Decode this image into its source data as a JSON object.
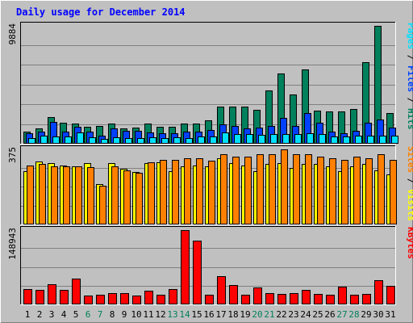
{
  "title": "Daily usage for December 2014",
  "colors": {
    "background": "#C0C0C0",
    "frame_outer": "#7F7F7F",
    "title_text": "#0000FF",
    "hits": "#00805C",
    "files": "#0040FF",
    "pages": "#00E0FF",
    "visits": "#FFFF00",
    "sites": "#FF8000",
    "kbytes": "#FF0000",
    "weekday": "#000000",
    "weekend": "#00805C"
  },
  "chart_data": [
    {
      "type": "bar",
      "panel": "top",
      "scale_label": "9884",
      "ylim": [
        0,
        9884
      ],
      "legend": [
        {
          "text": "Pages",
          "color": "#00E0FF"
        },
        {
          "text": " / ",
          "color": "#000000"
        },
        {
          "text": "Files",
          "color": "#0040FF"
        },
        {
          "text": " / ",
          "color": "#000000"
        },
        {
          "text": "Hits",
          "color": "#00805C"
        }
      ],
      "categories": [
        "1",
        "2",
        "3",
        "4",
        "5",
        "6",
        "7",
        "8",
        "9",
        "10",
        "11",
        "12",
        "13",
        "14",
        "15",
        "16",
        "17",
        "18",
        "19",
        "20",
        "21",
        "22",
        "23",
        "24",
        "25",
        "26",
        "27",
        "28",
        "29",
        "30",
        "31"
      ],
      "series": [
        {
          "name": "Hits",
          "color": "#00805C",
          "values": [
            950,
            1230,
            2170,
            1700,
            1630,
            1360,
            1440,
            1630,
            1230,
            1290,
            1630,
            1360,
            1360,
            1630,
            1630,
            1900,
            3050,
            3050,
            3050,
            2780,
            4420,
            5850,
            4080,
            6190,
            2710,
            2640,
            2640,
            2850,
            6800,
            9880,
            2510
          ]
        },
        {
          "name": "Files",
          "color": "#0040FF",
          "values": [
            820,
            950,
            1760,
            950,
            1360,
            950,
            610,
            1230,
            1020,
            1020,
            880,
            820,
            820,
            950,
            950,
            1090,
            1560,
            1430,
            1220,
            1290,
            1430,
            2100,
            1430,
            2510,
            1700,
            950,
            820,
            1020,
            1700,
            1970,
            1290
          ]
        },
        {
          "name": "Pages",
          "color": "#00E0FF",
          "values": [
            410,
            610,
            550,
            550,
            880,
            480,
            340,
            480,
            410,
            410,
            480,
            410,
            480,
            410,
            550,
            550,
            880,
            750,
            750,
            680,
            740,
            750,
            750,
            820,
            750,
            550,
            550,
            610,
            610,
            610,
            610
          ]
        }
      ]
    },
    {
      "type": "bar",
      "panel": "middle",
      "scale_label": "375",
      "ylim": [
        0,
        375
      ],
      "legend": [
        {
          "text": "Sites",
          "color": "#FF8000"
        },
        {
          "text": " / ",
          "color": "#000000"
        },
        {
          "text": "Visits",
          "color": "#FFFF00"
        }
      ],
      "categories": [
        "1",
        "2",
        "3",
        "4",
        "5",
        "6",
        "7",
        "8",
        "9",
        "10",
        "11",
        "12",
        "13",
        "14",
        "15",
        "16",
        "17",
        "18",
        "19",
        "20",
        "21",
        "22",
        "23",
        "24",
        "25",
        "26",
        "27",
        "28",
        "29",
        "30",
        "31"
      ],
      "series": [
        {
          "name": "Visits",
          "color": "#FFFF00",
          "values": [
            266,
            314,
            304,
            294,
            289,
            305,
            200,
            305,
            277,
            261,
            305,
            310,
            266,
            289,
            294,
            289,
            329,
            305,
            294,
            266,
            300,
            305,
            280,
            300,
            300,
            289,
            266,
            289,
            300,
            270,
            250
          ]
        },
        {
          "name": "Sites",
          "color": "#FF8000",
          "values": [
            294,
            300,
            290,
            290,
            290,
            285,
            190,
            290,
            270,
            255,
            310,
            320,
            320,
            330,
            330,
            318,
            350,
            340,
            338,
            350,
            350,
            375,
            350,
            350,
            338,
            330,
            320,
            338,
            330,
            350,
            320
          ]
        }
      ]
    },
    {
      "type": "bar",
      "panel": "bottom",
      "scale_label": "148943",
      "ylim": [
        0,
        148943
      ],
      "legend": [
        {
          "text": "KBytes",
          "color": "#FF0000"
        }
      ],
      "categories": [
        "1",
        "2",
        "3",
        "4",
        "5",
        "6",
        "7",
        "8",
        "9",
        "10",
        "11",
        "12",
        "13",
        "14",
        "15",
        "16",
        "17",
        "18",
        "19",
        "20",
        "21",
        "22",
        "23",
        "24",
        "25",
        "26",
        "27",
        "28",
        "29",
        "30",
        "31"
      ],
      "series": [
        {
          "name": "KBytes",
          "color": "#FF0000",
          "values": [
            29000,
            28000,
            39000,
            28000,
            51000,
            16000,
            18000,
            22000,
            22000,
            16000,
            27000,
            18000,
            29000,
            148943,
            128000,
            18000,
            55000,
            38000,
            18000,
            32000,
            22000,
            20000,
            22000,
            28000,
            19000,
            18000,
            34000,
            18000,
            20000,
            48000,
            36000
          ]
        }
      ]
    }
  ],
  "x_axis": {
    "labels": [
      "1",
      "2",
      "3",
      "4",
      "5",
      "6",
      "7",
      "8",
      "9",
      "10",
      "11",
      "12",
      "13",
      "14",
      "15",
      "16",
      "17",
      "18",
      "19",
      "20",
      "21",
      "22",
      "23",
      "24",
      "25",
      "26",
      "27",
      "28",
      "29",
      "30",
      "31"
    ],
    "weekend_days": [
      6,
      7,
      13,
      14,
      20,
      21,
      27,
      28
    ]
  }
}
